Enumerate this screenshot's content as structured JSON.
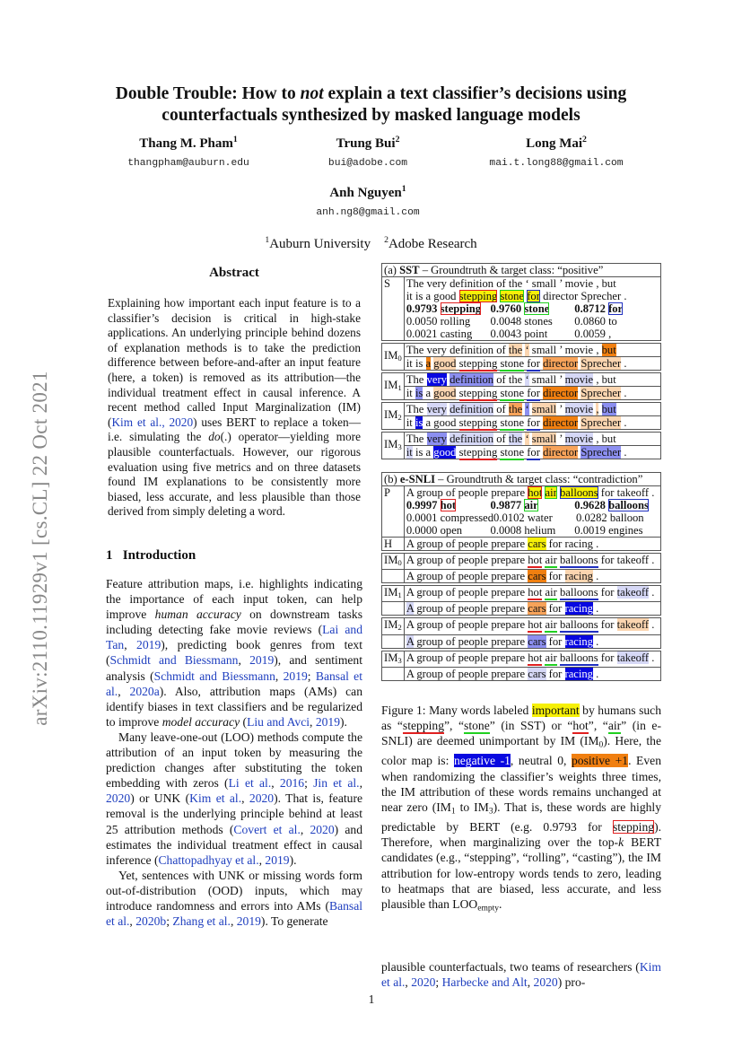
{
  "sidebar": "arXiv:2110.11929v1  [cs.CL]  22 Oct 2021",
  "title": [
    [
      "Double Trouble: How to "
    ],
    [
      "not",
      "it"
    ],
    [
      " explain a text classifier’s decisions using"
    ],
    [
      "\n"
    ],
    [
      "counterfactuals synthesized by masked language models"
    ]
  ],
  "authors": [
    {
      "name": "Thang M. Pham",
      "aff": "1",
      "email": "thangpham@auburn.edu"
    },
    {
      "name": "Trung Bui",
      "aff": "2",
      "email": "bui@adobe.com"
    },
    {
      "name": "Long Mai",
      "aff": "2",
      "email": "mai.t.long88@gmail.com"
    },
    {
      "name": "Anh Nguyen",
      "aff": "1",
      "email": "anh.ng8@gmail.com"
    }
  ],
  "affiliations": [
    {
      "num": "1",
      "name": "Auburn University"
    },
    {
      "num": "2",
      "name": "Adobe Research"
    }
  ],
  "abstract": {
    "heading": "Abstract",
    "body": [
      [
        "Explaining how important each input feature is to a classifier’s decision is critical in high-stake applications. An underlying principle behind dozens of explanation methods is to take the prediction difference between before-and-after an input feature (here, a token) is removed as its attribution—the individual treatment effect in causal inference. A recent method called Input Marginalization (IM) ("
      ],
      [
        "Kim et al., 2020",
        "cite"
      ],
      [
        ") uses BERT to replace a token—i.e. simulating the "
      ],
      [
        "do",
        "it"
      ],
      [
        "(.) operator—yielding more plausible counterfactuals. However, our rigorous evaluation using five metrics and on three datasets found IM explanations to be consistently more biased, less accurate, and less plausible than those derived from simply deleting a word."
      ]
    ]
  },
  "intro": {
    "heading_num": "1",
    "heading": "Introduction",
    "p1": [
      [
        "Feature attribution maps, i.e. highlights indicating the importance of each input token, can help improve "
      ],
      [
        "human accuracy",
        "it"
      ],
      [
        " on downstream tasks including detecting fake movie reviews ("
      ],
      [
        "Lai and Tan",
        "cite"
      ],
      [
        ", "
      ],
      [
        "2019",
        "cite"
      ],
      [
        "), predicting book genres from text ("
      ],
      [
        "Schmidt and Biessmann",
        "cite"
      ],
      [
        ", "
      ],
      [
        "2019",
        "cite"
      ],
      [
        "), and sentiment analysis ("
      ],
      [
        "Schmidt and Biessmann",
        "cite"
      ],
      [
        ", "
      ],
      [
        "2019",
        "cite"
      ],
      [
        "; "
      ],
      [
        "Bansal et al.",
        "cite"
      ],
      [
        ", "
      ],
      [
        "2020a",
        "cite"
      ],
      [
        "). Also, attribution maps (AMs) can identify biases in text classifiers and be regularized to improve "
      ],
      [
        "model accuracy",
        "it"
      ],
      [
        " ("
      ],
      [
        "Liu and Avci",
        "cite"
      ],
      [
        ", "
      ],
      [
        "2019",
        "cite"
      ],
      [
        ")."
      ]
    ],
    "p2": [
      [
        "Many leave-one-out (LOO) methods compute the attribution of an input token by measuring the prediction changes after substituting the token embedding with zeros ("
      ],
      [
        "Li et al.",
        "cite"
      ],
      [
        ", "
      ],
      [
        "2016",
        "cite"
      ],
      [
        "; "
      ],
      [
        "Jin et al.",
        "cite"
      ],
      [
        ", "
      ],
      [
        "2020",
        "cite"
      ],
      [
        ") or UNK ("
      ],
      [
        "Kim et al.",
        "cite"
      ],
      [
        ", "
      ],
      [
        "2020",
        "cite"
      ],
      [
        "). That is, feature removal is the underlying principle behind at least 25 attribution methods ("
      ],
      [
        "Covert et al.",
        "cite"
      ],
      [
        ", "
      ],
      [
        "2020",
        "cite"
      ],
      [
        ") and estimates the individual treatment effect in causal inference ("
      ],
      [
        "Chattopadhyay et al.",
        "cite"
      ],
      [
        ", "
      ],
      [
        "2019",
        "cite"
      ],
      [
        ")."
      ]
    ],
    "p3": [
      [
        "Yet, sentences with UNK or missing words form out-of-distribution (OOD) inputs, which may introduce randomness and errors into AMs ("
      ],
      [
        "Bansal et al.",
        "cite"
      ],
      [
        ", "
      ],
      [
        "2020b",
        "cite"
      ],
      [
        "; "
      ],
      [
        "Zhang et al.",
        "cite"
      ],
      [
        ", "
      ],
      [
        "2019",
        "cite"
      ],
      [
        "). To generate"
      ]
    ]
  },
  "figure": {
    "sst": {
      "header": [
        [
          "(a) "
        ],
        [
          "SST",
          "b"
        ],
        [
          " – Groundtruth & target class: “positive”"
        ]
      ],
      "s_label": "S",
      "s_lines": [
        [
          "The",
          "very",
          "definition",
          "of",
          "the",
          "‘",
          "small",
          "’",
          "movie",
          ",",
          "but"
        ],
        [
          "it",
          "is",
          "a",
          "good",
          "stepping|y bxr",
          "stone|y bxg",
          "for|y bxb",
          "director",
          "Sprecher",
          "."
        ]
      ],
      "candidates": [
        [
          [
            "0.9793 ",
            "b"
          ],
          [
            "stepping",
            "b bxr"
          ]
        ],
        [
          [
            "0.9760 ",
            "b"
          ],
          [
            "stone",
            "b bxg"
          ]
        ],
        [
          [
            "0.8712 ",
            "b"
          ],
          [
            "for",
            "b bxb"
          ]
        ],
        [
          [
            "0.0050 rolling"
          ]
        ],
        [
          [
            "0.0048 stones"
          ]
        ],
        [
          [
            "0.0860 to"
          ]
        ],
        [
          [
            "0.0021 casting"
          ]
        ],
        [
          [
            "0.0043 point"
          ]
        ],
        [
          [
            "0.0059 ,"
          ]
        ]
      ],
      "rows": [
        {
          "label": "IM",
          "sub": "0",
          "lines": [
            [
              "The",
              "very",
              "definition",
              "of",
              "the|o1",
              "‘|o1",
              "small",
              "’",
              "movie",
              ",",
              "but|o3"
            ],
            [
              "it",
              "is",
              "a|o3",
              "good|o1",
              "stepping|ur",
              "stone|ug",
              "for|ub",
              "director|o2",
              "Sprecher|o1",
              "."
            ]
          ]
        },
        {
          "label": "IM",
          "sub": "1",
          "lines": [
            [
              "The",
              "very|b3",
              "definition|b2",
              "of",
              "the",
              "‘|b1",
              "small",
              "’",
              "movie|b1",
              ",",
              "but"
            ],
            [
              "it",
              "is|b2",
              "a",
              "good|o1",
              "stepping|ur",
              "stone|ug",
              "for|ub",
              "director|o3",
              "Sprecher|o1",
              "."
            ]
          ]
        },
        {
          "label": "IM",
          "sub": "2",
          "lines": [
            [
              "The",
              "very|b1",
              "definition|b1",
              "of",
              "the|o2",
              "‘|b2",
              "small|o1",
              "’",
              "movie|b1",
              ",|o1",
              "but|b2"
            ],
            [
              "it",
              "is|b3",
              "a",
              "good",
              "stepping|ur",
              "stone|ug",
              "for|ub",
              "director|o3",
              "Sprecher|o1",
              "."
            ]
          ]
        },
        {
          "label": "IM",
          "sub": "3",
          "lines": [
            [
              "The",
              "very|b2",
              "definition|b1",
              "of",
              "the|b1",
              "‘|o1",
              "small|o1",
              "’",
              "movie|b1",
              ",",
              "but"
            ],
            [
              "it|b1",
              "is",
              "a",
              "good|b3",
              "stepping|ur",
              "stone|ug",
              "for|ub",
              "director|o2",
              "Sprecher|b2",
              "."
            ]
          ]
        }
      ]
    },
    "esnli": {
      "header": [
        [
          "(b) "
        ],
        [
          "e-SNLI",
          "b"
        ],
        [
          " – Groundtruth & target class: “contradiction”"
        ]
      ],
      "p_label": "P",
      "p_line": [
        "A",
        "group",
        "of",
        "people",
        "prepare",
        "hot|y bxr",
        "air|y bxg",
        "balloons|y bxb",
        "for",
        "takeoff",
        "."
      ],
      "candidates": [
        [
          [
            "0.9997 ",
            "b"
          ],
          [
            "hot",
            "b bxr"
          ]
        ],
        [
          [
            "0.9877 ",
            "b"
          ],
          [
            "air",
            "b bxg"
          ]
        ],
        [
          [
            "0.9628 ",
            "b"
          ],
          [
            "balloons",
            "b bxb"
          ]
        ],
        [
          [
            "0.0001 compressed"
          ]
        ],
        [
          [
            "0.0102 water"
          ]
        ],
        [
          [
            "0.0282 balloon"
          ]
        ],
        [
          [
            "0.0000 open"
          ]
        ],
        [
          [
            "0.0008 helium"
          ]
        ],
        [
          [
            "0.0019 engines"
          ]
        ]
      ],
      "h_label": "H",
      "h_line": [
        "A",
        "group",
        "of",
        "people",
        "prepare",
        "cars|y",
        "for",
        "racing",
        "."
      ],
      "rows": [
        {
          "label": "IM",
          "sub": "0",
          "lines": [
            [
              "A",
              "group",
              "of",
              "people",
              "prepare",
              "hot|ur",
              "air|ug",
              "balloons|ub",
              "for",
              "takeoff",
              "."
            ],
            [
              "A",
              "group",
              "of",
              "people",
              "prepare",
              "cars|o3",
              "for",
              "racing|o1",
              "."
            ]
          ]
        },
        {
          "label": "IM",
          "sub": "1",
          "lines": [
            [
              "A",
              "group",
              "of",
              "people",
              "prepare",
              "hot|ur",
              "air|ug",
              "balloons|ub",
              "for",
              "takeoff|b1",
              "."
            ],
            [
              "A|b1",
              "group",
              "of",
              "people",
              "prepare",
              "cars|o2",
              "for",
              "racing|b3",
              "."
            ]
          ]
        },
        {
          "label": "IM",
          "sub": "2",
          "lines": [
            [
              "A",
              "group",
              "of",
              "people",
              "prepare",
              "hot|ur",
              "air|ug",
              "balloons|ub",
              "for",
              "takeoff|o1",
              "."
            ],
            [
              "A|b1",
              "group",
              "of",
              "people",
              "prepare",
              "cars|b2",
              "for",
              "racing|b3",
              "."
            ]
          ]
        },
        {
          "label": "IM",
          "sub": "3",
          "lines": [
            [
              "A",
              "group",
              "of",
              "people",
              "prepare",
              "hot|ur",
              "air|ug",
              "balloons|ub",
              "for",
              "takeoff|b1",
              "."
            ],
            [
              "A",
              "group",
              "of",
              "people",
              "prepare",
              "cars|b1",
              "for",
              "racing|b3",
              "."
            ]
          ]
        }
      ]
    },
    "caption": [
      [
        "Figure 1:  Many words labeled "
      ],
      [
        "important",
        "y"
      ],
      [
        " by humans such as “"
      ],
      [
        "stepping",
        "ur"
      ],
      [
        "”, “"
      ],
      [
        "stone",
        "ug"
      ],
      [
        "” (in SST) or “"
      ],
      [
        "hot",
        "ur"
      ],
      [
        "”, “"
      ],
      [
        "air",
        "ug"
      ],
      [
        "” (in e-SNLI) are deemed unimportant by IM (IM"
      ],
      [
        "0",
        "sub"
      ],
      [
        "). Here, the color map is: "
      ],
      [
        "negative -1",
        "b3"
      ],
      [
        ", neutral 0, "
      ],
      [
        "positive +1",
        "o3"
      ],
      [
        ". Even when randomizing the classifier’s weights three times, the IM attribution of these words remains unchanged at near zero (IM"
      ],
      [
        "1",
        "sub"
      ],
      [
        " to IM"
      ],
      [
        "3",
        "sub"
      ],
      [
        "). That is, these words are highly predictable by BERT (e.g. 0.9793 for "
      ],
      [
        "stepping",
        "bxr"
      ],
      [
        "). Therefore, when marginalizing over the top-"
      ],
      [
        "k",
        "it"
      ],
      [
        " BERT candidates (e.g., “stepping”, “rolling”, “casting”), the IM attribution for low-entropy words tends to zero, leading to heatmaps that are biased, less accurate, and less plausible than LOO"
      ],
      [
        "empty",
        "sub"
      ],
      [
        "."
      ]
    ]
  },
  "right_text": [
    [
      "plausible counterfactuals, two teams of researchers ("
    ],
    [
      "Kim et al.",
      "cite"
    ],
    [
      ", "
    ],
    [
      "2020",
      "cite"
    ],
    [
      "; "
    ],
    [
      "Harbecke and Alt",
      "cite"
    ],
    [
      ", "
    ],
    [
      "2020",
      "cite"
    ],
    [
      ") pro-"
    ]
  ],
  "colors": {
    "negative": "#0808e0",
    "positive": "#f07f10",
    "human_label": "#f6f007",
    "citation": "#1f3fbf"
  },
  "page_number": "1"
}
